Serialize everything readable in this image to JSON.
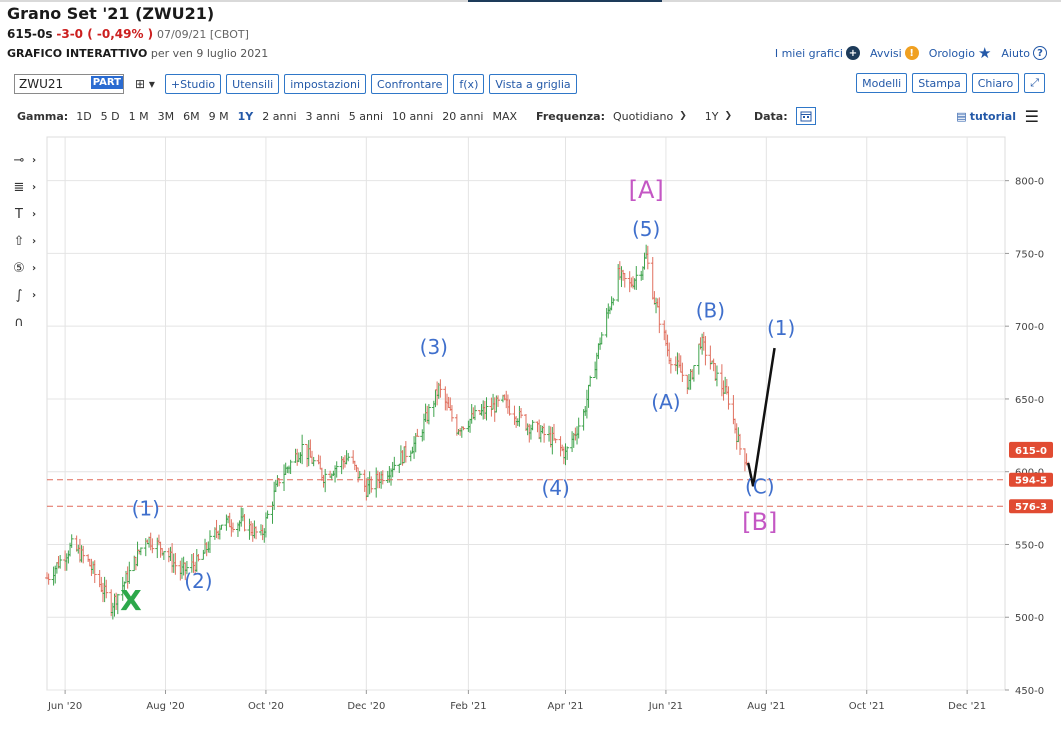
{
  "header": {
    "title": "Grano Set '21 (ZWU21)",
    "last": "615-0s",
    "change": "-3-0 ( -0,49% )",
    "quote_date": "07/09/21 [CBOT]",
    "subtitle_bold": "GRAFICO INTERATTIVO",
    "subtitle_rest": "per ven 9 luglio 2021"
  },
  "links": {
    "my_charts": "I miei grafici",
    "alerts": "Avvisi",
    "clock": "Orologio",
    "help": "Aiuto"
  },
  "toolbar": {
    "symbol": "ZWU21",
    "part": "PART",
    "studio": "+Studio",
    "tools": "Utensili",
    "settings": "impostazioni",
    "compare": "Confrontare",
    "fx": "f(x)",
    "grid_view": "Vista a griglia",
    "models": "Modelli",
    "print": "Stampa",
    "light": "Chiaro"
  },
  "rangebar": {
    "label": "Gamma:",
    "ranges": [
      "1D",
      "5 D",
      "1 M",
      "3M",
      "6M",
      "9 M",
      "1Y",
      "2 anni",
      "3 anni",
      "5 anni",
      "10 anni",
      "20 anni",
      "MAX"
    ],
    "active": "1Y",
    "freq_label": "Frequenza:",
    "freq_value": "Quotidiano",
    "period_value": "1Y",
    "date_label": "Data:",
    "tutorial": "tutorial"
  },
  "colors": {
    "up": "#3fa34d",
    "down": "#e0705f",
    "wave_blue": "#3f6fcc",
    "wave_purple": "#c457c4",
    "wave_green": "#2ca84a",
    "hline": "#e06a5a",
    "price_badge": "#e14b32"
  },
  "chart_data": {
    "type": "ohlc",
    "symbol": "ZWU21",
    "ylim": [
      450,
      830
    ],
    "yticks": [
      "800-0",
      "750-0",
      "700-0",
      "650-0",
      "600-0",
      "550-0",
      "500-0",
      "450-0"
    ],
    "xtick_labels": [
      "Jun '20",
      "Aug '20",
      "Oct '20",
      "Dec '20",
      "Feb '21",
      "Apr '21",
      "Jun '21",
      "Aug '21",
      "Oct '21",
      "Dec '21"
    ],
    "xticks_dates": [
      "2020-06-01",
      "2020-08-01",
      "2020-10-01",
      "2020-12-01",
      "2021-02-01",
      "2021-04-01",
      "2021-06-01",
      "2021-08-01",
      "2021-10-01",
      "2021-12-01"
    ],
    "x_range": [
      "2020-05-21",
      "2021-12-24"
    ],
    "price_path": [
      [
        "2020-05-21",
        527
      ],
      [
        "2020-06-05",
        549
      ],
      [
        "2020-06-15",
        538
      ],
      [
        "2020-06-29",
        508
      ],
      [
        "2020-07-09",
        528
      ],
      [
        "2020-07-20",
        555
      ],
      [
        "2020-07-31",
        547
      ],
      [
        "2020-08-10",
        531
      ],
      [
        "2020-08-21",
        538
      ],
      [
        "2020-09-04",
        565
      ],
      [
        "2020-09-17",
        565
      ],
      [
        "2020-09-28",
        555
      ],
      [
        "2020-10-09",
        595
      ],
      [
        "2020-10-23",
        617
      ],
      [
        "2020-11-05",
        597
      ],
      [
        "2020-11-20",
        610
      ],
      [
        "2020-12-01",
        588
      ],
      [
        "2020-12-15",
        602
      ],
      [
        "2020-12-31",
        620
      ],
      [
        "2021-01-14",
        657
      ],
      [
        "2021-01-25",
        630
      ],
      [
        "2021-02-08",
        640
      ],
      [
        "2021-02-22",
        648
      ],
      [
        "2021-03-08",
        633
      ],
      [
        "2021-03-24",
        622
      ],
      [
        "2021-04-01",
        612
      ],
      [
        "2021-04-12",
        640
      ],
      [
        "2021-04-22",
        690
      ],
      [
        "2021-05-03",
        735
      ],
      [
        "2021-05-10",
        728
      ],
      [
        "2021-05-17",
        740
      ],
      [
        "2021-05-20",
        748
      ],
      [
        "2021-05-25",
        718
      ],
      [
        "2021-06-03",
        680
      ],
      [
        "2021-06-15",
        660
      ],
      [
        "2021-06-22",
        690
      ],
      [
        "2021-07-02",
        665
      ],
      [
        "2021-07-09",
        650
      ],
      [
        "2021-07-16",
        616
      ],
      [
        "2021-07-21",
        606
      ]
    ],
    "last_price": 615,
    "last_price_label": "615-0",
    "horizontal_lines": [
      {
        "value": 594.5,
        "label": "594-5"
      },
      {
        "value": 576.3,
        "label": "576-3"
      }
    ],
    "projection": [
      [
        "2021-07-24",
        590
      ],
      [
        "2021-08-06",
        685
      ]
    ],
    "annotations": [
      {
        "text": "X",
        "date": "2020-07-11",
        "price": 505,
        "color": "wave_green"
      },
      {
        "text": "(1)",
        "date": "2020-07-20",
        "price": 570,
        "color": "wave_blue"
      },
      {
        "text": "(2)",
        "date": "2020-08-21",
        "price": 520,
        "color": "wave_blue"
      },
      {
        "text": "(3)",
        "date": "2021-01-11",
        "price": 681,
        "color": "wave_blue"
      },
      {
        "text": "(4)",
        "date": "2021-03-26",
        "price": 584,
        "color": "wave_blue"
      },
      {
        "text": "(5)",
        "date": "2021-05-20",
        "price": 762,
        "color": "wave_blue"
      },
      {
        "text": "[A]",
        "date": "2021-05-20",
        "price": 788,
        "color": "wave_purple"
      },
      {
        "text": "(A)",
        "date": "2021-06-01",
        "price": 643,
        "color": "wave_blue"
      },
      {
        "text": "(B)",
        "date": "2021-06-28",
        "price": 706,
        "color": "wave_blue"
      },
      {
        "text": "(C)",
        "date": "2021-07-28",
        "price": 585,
        "color": "wave_blue"
      },
      {
        "text": "[B]",
        "date": "2021-07-28",
        "price": 560,
        "color": "wave_purple"
      },
      {
        "text": "(1)",
        "date": "2021-08-10",
        "price": 694,
        "color": "wave_blue"
      }
    ]
  }
}
